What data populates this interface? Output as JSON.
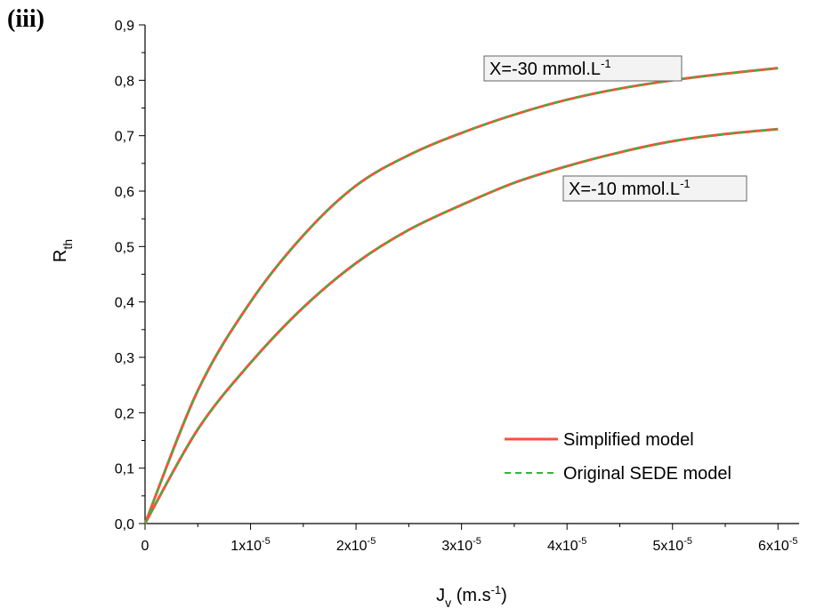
{
  "panel_label": "(iii)",
  "chart_data": {
    "type": "line",
    "xlabel_main": "J",
    "xlabel_sub": "v",
    "xlabel_unit_before": " (m.s",
    "xlabel_unit_exp": "-1",
    "xlabel_unit_after": ")",
    "ylabel_main": "R",
    "ylabel_sub": "th",
    "xlim": [
      0,
      6.2e-05
    ],
    "ylim": [
      0,
      0.9
    ],
    "x_ticks": [
      {
        "value": 0,
        "label": "0",
        "mant": "",
        "exp": ""
      },
      {
        "value": 1e-05,
        "label": "",
        "mant": "1x10",
        "exp": "-5"
      },
      {
        "value": 2e-05,
        "label": "",
        "mant": "2x10",
        "exp": "-5"
      },
      {
        "value": 3e-05,
        "label": "",
        "mant": "3x10",
        "exp": "-5"
      },
      {
        "value": 4e-05,
        "label": "",
        "mant": "4x10",
        "exp": "-5"
      },
      {
        "value": 5e-05,
        "label": "",
        "mant": "5x10",
        "exp": "-5"
      },
      {
        "value": 6e-05,
        "label": "",
        "mant": "6x10",
        "exp": "-5"
      }
    ],
    "y_ticks": [
      {
        "value": 0.0,
        "label": "0,0"
      },
      {
        "value": 0.1,
        "label": "0,1"
      },
      {
        "value": 0.2,
        "label": "0,2"
      },
      {
        "value": 0.3,
        "label": "0,3"
      },
      {
        "value": 0.4,
        "label": "0,4"
      },
      {
        "value": 0.5,
        "label": "0,5"
      },
      {
        "value": 0.6,
        "label": "0,6"
      },
      {
        "value": 0.7,
        "label": "0,7"
      },
      {
        "value": 0.8,
        "label": "0,8"
      },
      {
        "value": 0.9,
        "label": "0,9"
      }
    ],
    "grid": false,
    "legend_position": "bottom-right",
    "series": [
      {
        "name": "Simplified model",
        "color": "#ff4f3a",
        "style": "solid"
      },
      {
        "name": "Original SEDE model",
        "color": "#34b53c",
        "style": "dashed"
      }
    ],
    "curves": [
      {
        "x": [
          0,
          5e-06,
          1e-05,
          1.5e-05,
          2e-05,
          2.5e-05,
          3e-05,
          3.5e-05,
          4e-05,
          4.5e-05,
          5e-05,
          5.5e-05,
          6e-05
        ],
        "y": [
          0,
          0.24,
          0.4,
          0.52,
          0.61,
          0.665,
          0.705,
          0.738,
          0.765,
          0.785,
          0.8,
          0.812,
          0.822
        ]
      },
      {
        "x": [
          0,
          5e-06,
          1e-05,
          1.5e-05,
          2e-05,
          2.5e-05,
          3e-05,
          3.5e-05,
          4e-05,
          4.5e-05,
          5e-05,
          5.5e-05,
          6e-05
        ],
        "y": [
          0,
          0.17,
          0.29,
          0.39,
          0.47,
          0.53,
          0.575,
          0.615,
          0.645,
          0.67,
          0.69,
          0.703,
          0.712
        ]
      }
    ],
    "annotations": [
      {
        "main": "X=-30 mmol.L",
        "sup": "-1",
        "curve": 0
      },
      {
        "main": "X=-10 mmol.L",
        "sup": "-1",
        "curve": 1
      }
    ]
  }
}
